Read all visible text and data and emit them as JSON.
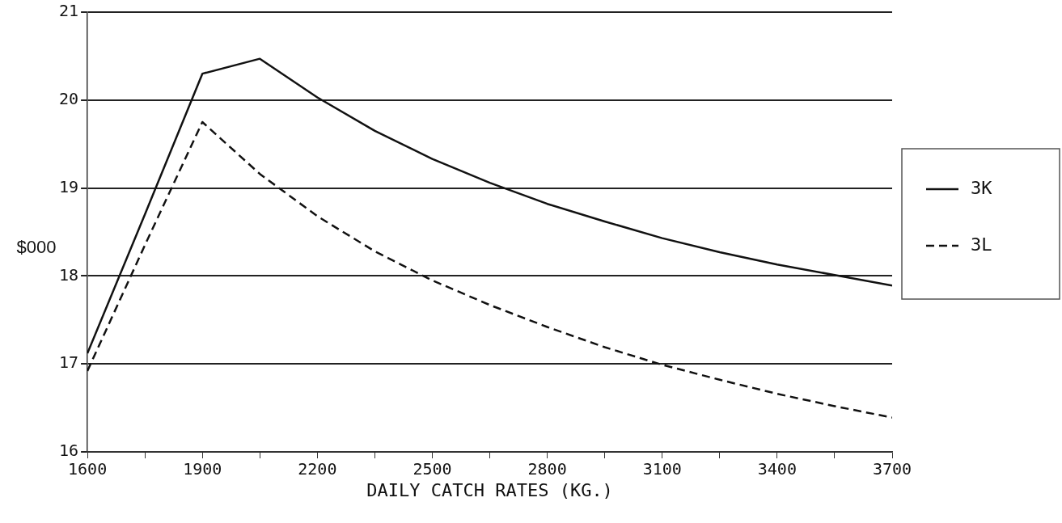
{
  "chart_data": {
    "type": "line",
    "xlabel": "DAILY CATCH RATES (KG.)",
    "ylabel": "$000",
    "x": [
      1600,
      1750,
      1900,
      2050,
      2200,
      2350,
      2500,
      2650,
      2800,
      2950,
      3100,
      3250,
      3400,
      3550,
      3700
    ],
    "series": [
      {
        "name": "3K",
        "color": "#111111",
        "line_style": "solid",
        "values": [
          17.12,
          18.7,
          20.3,
          20.47,
          20.03,
          19.65,
          19.33,
          19.06,
          18.82,
          18.62,
          18.43,
          18.27,
          18.13,
          18.01,
          17.89
        ]
      },
      {
        "name": "3L",
        "color": "#111111",
        "line_style": "dashed",
        "values": [
          16.92,
          18.35,
          19.75,
          19.16,
          18.68,
          18.28,
          17.95,
          17.67,
          17.42,
          17.19,
          16.99,
          16.82,
          16.66,
          16.52,
          16.39
        ]
      }
    ],
    "xlim": [
      1600,
      3700
    ],
    "xticks": [
      1600,
      {
        "value": 1750,
        "label": null
      },
      1900,
      {
        "value": 2050,
        "label": null
      },
      2200,
      {
        "value": 2350,
        "label": null
      },
      2500,
      {
        "value": 2650,
        "label": null
      },
      2800,
      {
        "value": 2950,
        "label": null
      },
      3100,
      {
        "value": 3250,
        "label": null
      },
      3400,
      {
        "value": 3550,
        "label": null
      },
      3700
    ],
    "ylim": [
      16,
      21
    ],
    "yticks": [
      16,
      17,
      18,
      19,
      20,
      21
    ],
    "grid": "y",
    "legend": "right",
    "marker": "none"
  }
}
